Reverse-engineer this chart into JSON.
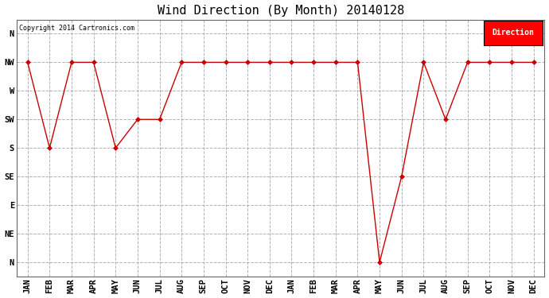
{
  "title": "Wind Direction (By Month) 20140128",
  "copyright": "Copyright 2014 Cartronics.com",
  "legend_label": "Direction",
  "legend_color": "#ff0000",
  "x_labels": [
    "JAN",
    "FEB",
    "MAR",
    "APR",
    "MAY",
    "JUN",
    "JUL",
    "AUG",
    "SEP",
    "OCT",
    "NOV",
    "DEC",
    "JAN",
    "FEB",
    "MAR",
    "APR",
    "MAY",
    "JUN",
    "JUL",
    "AUG",
    "SEP",
    "OCT",
    "NOV",
    "DEC"
  ],
  "y_tick_positions": [
    8,
    7,
    6,
    5,
    4,
    3,
    2,
    1,
    0
  ],
  "y_tick_labels": [
    "N",
    "NW",
    "W",
    "SW",
    "S",
    "SE",
    "E",
    "NE",
    "N"
  ],
  "data_values": [
    7,
    4,
    7,
    7,
    4,
    5,
    5,
    7,
    7,
    7,
    7,
    7,
    7,
    7,
    7,
    7,
    0,
    3,
    7,
    5,
    7,
    7,
    7,
    7
  ],
  "line_color": "#cc0000",
  "marker_color": "#cc0000",
  "bg_color": "#ffffff",
  "plot_bg_color": "#ffffff",
  "grid_color": "#aaaaaa",
  "title_fontsize": 11,
  "tick_fontsize": 7.5
}
